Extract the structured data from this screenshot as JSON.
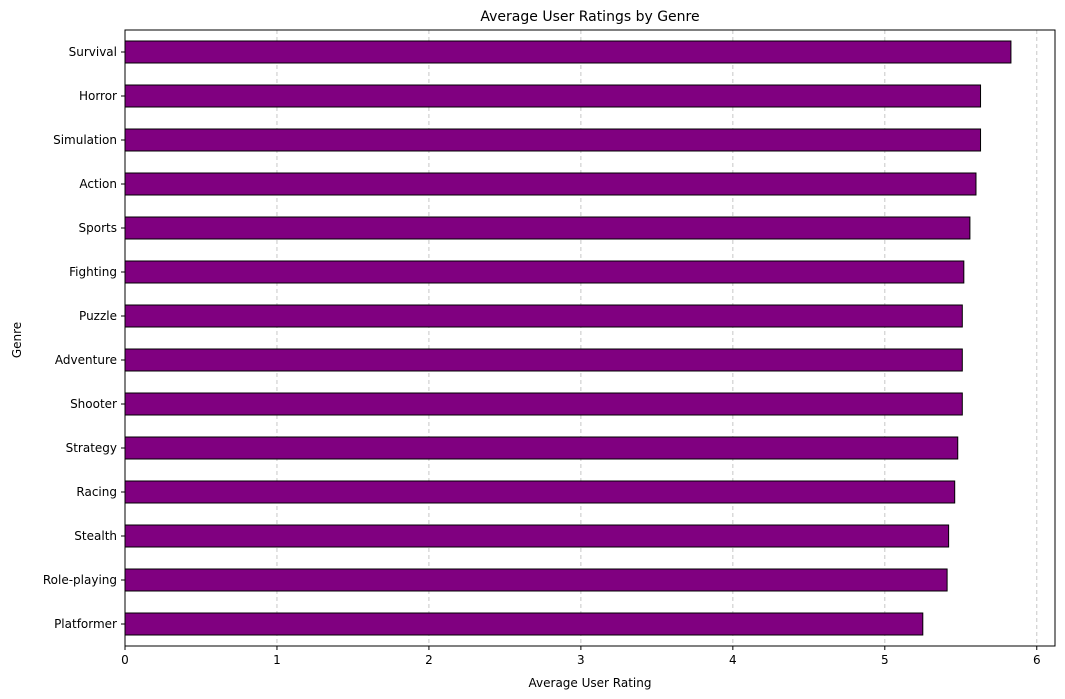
{
  "chart_data": {
    "type": "bar",
    "orientation": "horizontal",
    "title": "Average User Ratings by Genre",
    "xlabel": "Average User Rating",
    "ylabel": "Genre",
    "categories": [
      "Survival",
      "Horror",
      "Simulation",
      "Action",
      "Sports",
      "Fighting",
      "Puzzle",
      "Adventure",
      "Shooter",
      "Strategy",
      "Racing",
      "Stealth",
      "Role-playing",
      "Platformer"
    ],
    "values": [
      5.83,
      5.63,
      5.63,
      5.6,
      5.56,
      5.52,
      5.51,
      5.51,
      5.51,
      5.48,
      5.46,
      5.42,
      5.41,
      5.25
    ],
    "xlim": [
      0,
      6.12
    ],
    "xticks": [
      "0",
      "1",
      "2",
      "3",
      "4",
      "5",
      "6"
    ],
    "grid": "x-dashed",
    "bar_color": "#800080",
    "edge_color": "#000000"
  }
}
